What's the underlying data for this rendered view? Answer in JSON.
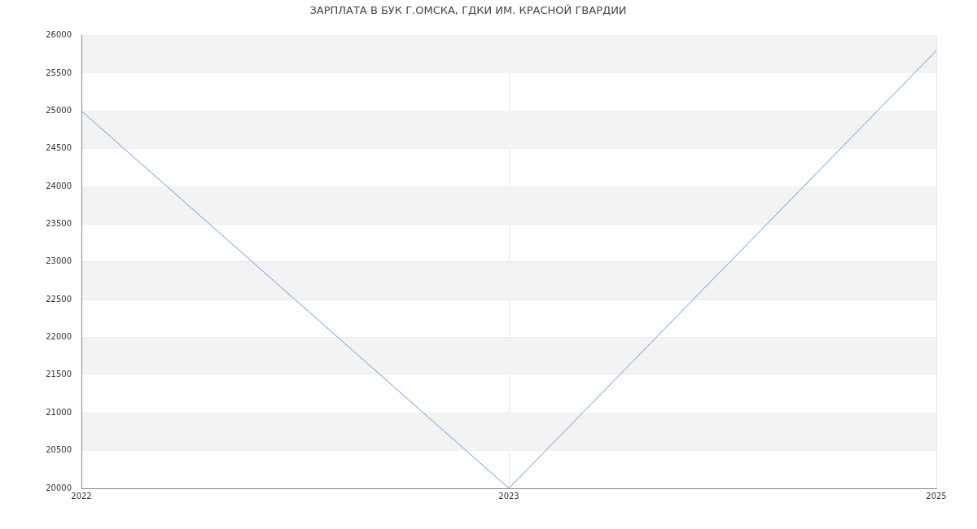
{
  "chart_data": {
    "type": "line",
    "title": "ЗАРПЛАТА В БУК Г.ОМСКА, ГДКИ ИМ. КРАСНОЙ ГВАРДИИ",
    "categories": [
      "2022",
      "2023",
      "2025"
    ],
    "series": [
      {
        "color": "#6495ed",
        "values": [
          25000,
          20000,
          25800
        ]
      }
    ],
    "ylim": [
      20000,
      26000
    ],
    "yticks": [
      20000,
      20500,
      21000,
      21500,
      22000,
      22500,
      23000,
      23500,
      24000,
      24500,
      25000,
      25500,
      26000
    ],
    "grid": true,
    "legend": false,
    "marker": "none",
    "line_style": "solid"
  }
}
